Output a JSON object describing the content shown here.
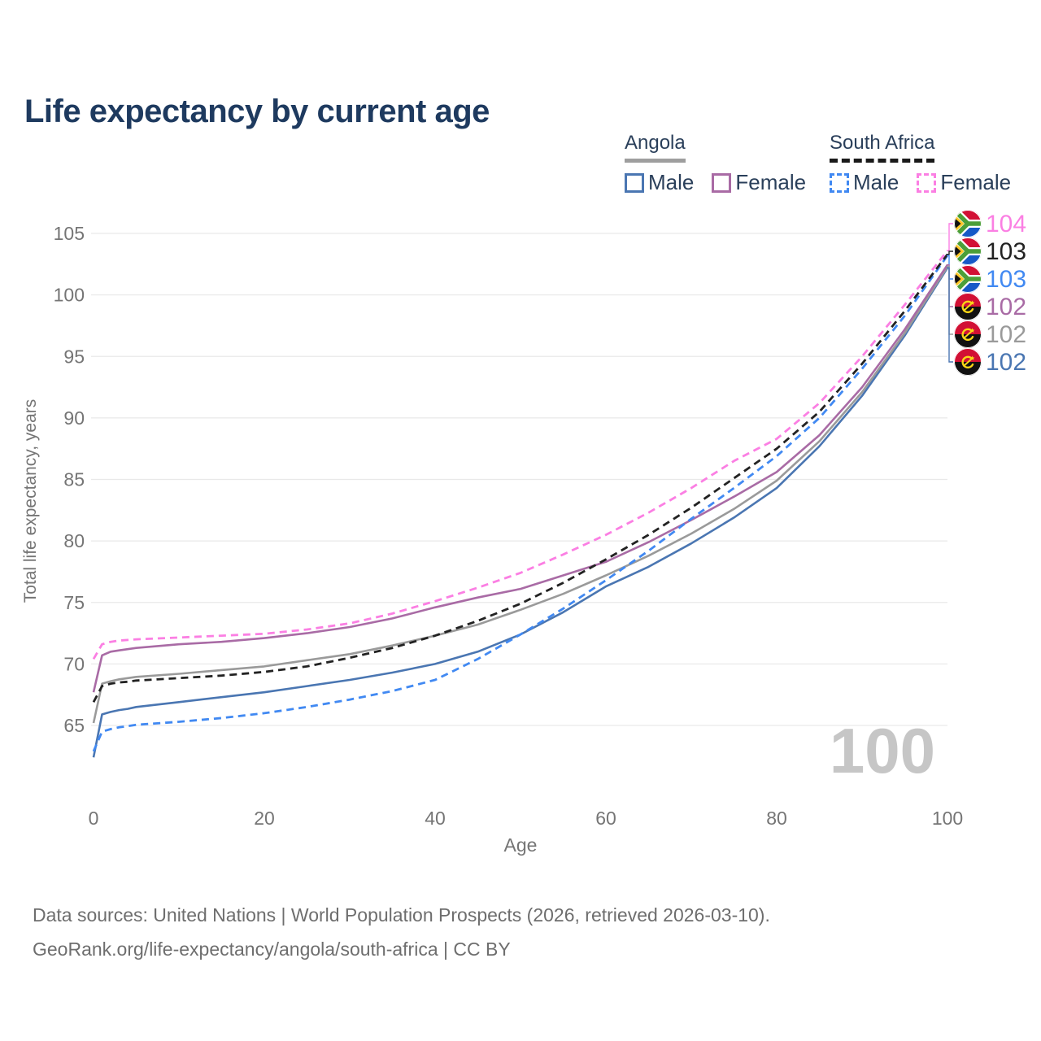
{
  "title": "Life expectancy by current age",
  "watermark": "100",
  "legend": {
    "groups": [
      {
        "label": "Angola",
        "underline_style": "solid",
        "underline_color": "#9e9e9e",
        "items": [
          {
            "label": "Male",
            "color": "#4a76b2",
            "dashed": false
          },
          {
            "label": "Female",
            "color": "#a96ba5",
            "dashed": false
          }
        ]
      },
      {
        "label": "South Africa",
        "underline_style": "dashed",
        "underline_color": "#1a1a1a",
        "items": [
          {
            "label": "Male",
            "color": "#4189f2",
            "dashed": true
          },
          {
            "label": "Female",
            "color": "#fb7fe3",
            "dashed": true
          }
        ]
      }
    ]
  },
  "footer": {
    "line1": "Data sources: United Nations | World Population Prospects (2026, retrieved 2026-03-10).",
    "line2": "GeoRank.org/life-expectancy/angola/south-africa | CC BY"
  },
  "chart_data": {
    "type": "line",
    "title": "Life expectancy by current age",
    "xlabel": "Age",
    "ylabel": "Total life expectancy, years",
    "xlim": [
      0,
      100
    ],
    "ylim": [
      62,
      106
    ],
    "x_ticks": [
      0,
      20,
      40,
      60,
      80,
      100
    ],
    "y_ticks": [
      65,
      70,
      75,
      80,
      85,
      90,
      95,
      100,
      105
    ],
    "grid": "horizontal",
    "legend_position": "top-right",
    "ages": [
      0,
      1,
      2,
      3,
      4,
      5,
      10,
      15,
      20,
      25,
      30,
      35,
      40,
      45,
      50,
      55,
      60,
      65,
      70,
      75,
      80,
      85,
      90,
      95,
      100
    ],
    "series": [
      {
        "name": "South Africa Female",
        "country": "South Africa",
        "sex": "Female",
        "color": "#fb7fe3",
        "dashed": true,
        "flag": "za",
        "end_label": "104",
        "values": [
          70.4,
          71.6,
          71.8,
          71.9,
          71.95,
          72.0,
          72.15,
          72.3,
          72.45,
          72.8,
          73.3,
          74.1,
          75.1,
          76.2,
          77.4,
          78.9,
          80.5,
          82.3,
          84.3,
          86.5,
          88.3,
          91.2,
          95.0,
          99.2,
          103.6
        ]
      },
      {
        "name": "South Africa Both sexes",
        "country": "South Africa",
        "sex": "Both",
        "color": "#222222",
        "dashed": true,
        "flag": "za",
        "end_label": "103",
        "values": [
          66.9,
          68.2,
          68.4,
          68.5,
          68.55,
          68.65,
          68.85,
          69.05,
          69.35,
          69.8,
          70.5,
          71.3,
          72.3,
          73.5,
          74.9,
          76.6,
          78.5,
          80.5,
          82.7,
          85.1,
          87.5,
          90.5,
          94.4,
          98.7,
          103.3
        ]
      },
      {
        "name": "South Africa Male",
        "country": "South Africa",
        "sex": "Male",
        "color": "#4189f2",
        "dashed": true,
        "flag": "za",
        "end_label": "103",
        "values": [
          62.9,
          64.5,
          64.7,
          64.85,
          64.95,
          65.05,
          65.3,
          65.6,
          66.0,
          66.5,
          67.1,
          67.8,
          68.7,
          70.4,
          72.4,
          74.5,
          76.8,
          79.2,
          81.8,
          84.3,
          86.9,
          90.0,
          94.0,
          98.3,
          103.2
        ]
      },
      {
        "name": "Angola Female",
        "country": "Angola",
        "sex": "Female",
        "color": "#a96ba5",
        "dashed": false,
        "flag": "ao",
        "end_label": "102",
        "values": [
          67.7,
          70.7,
          71.0,
          71.1,
          71.2,
          71.3,
          71.6,
          71.8,
          72.1,
          72.5,
          73.0,
          73.7,
          74.6,
          75.4,
          76.1,
          77.2,
          78.3,
          79.9,
          81.7,
          83.6,
          85.6,
          88.6,
          92.5,
          97.2,
          102.45
        ]
      },
      {
        "name": "Angola Both sexes",
        "country": "Angola",
        "sex": "Both",
        "color": "#9a9a9a",
        "dashed": false,
        "flag": "ao",
        "end_label": "102",
        "values": [
          65.2,
          68.4,
          68.6,
          68.75,
          68.85,
          68.95,
          69.2,
          69.5,
          69.8,
          70.3,
          70.8,
          71.5,
          72.3,
          73.2,
          74.4,
          75.7,
          77.2,
          78.8,
          80.6,
          82.6,
          84.9,
          88.1,
          92.1,
          96.9,
          102.3
        ]
      },
      {
        "name": "Angola Male",
        "country": "Angola",
        "sex": "Male",
        "color": "#4a76b2",
        "dashed": false,
        "flag": "ao",
        "end_label": "102",
        "values": [
          62.4,
          65.9,
          66.1,
          66.25,
          66.35,
          66.5,
          66.9,
          67.3,
          67.7,
          68.2,
          68.7,
          69.3,
          70.0,
          71.0,
          72.4,
          74.2,
          76.3,
          77.9,
          79.8,
          81.9,
          84.3,
          87.7,
          91.8,
          96.7,
          102.2
        ]
      }
    ]
  }
}
